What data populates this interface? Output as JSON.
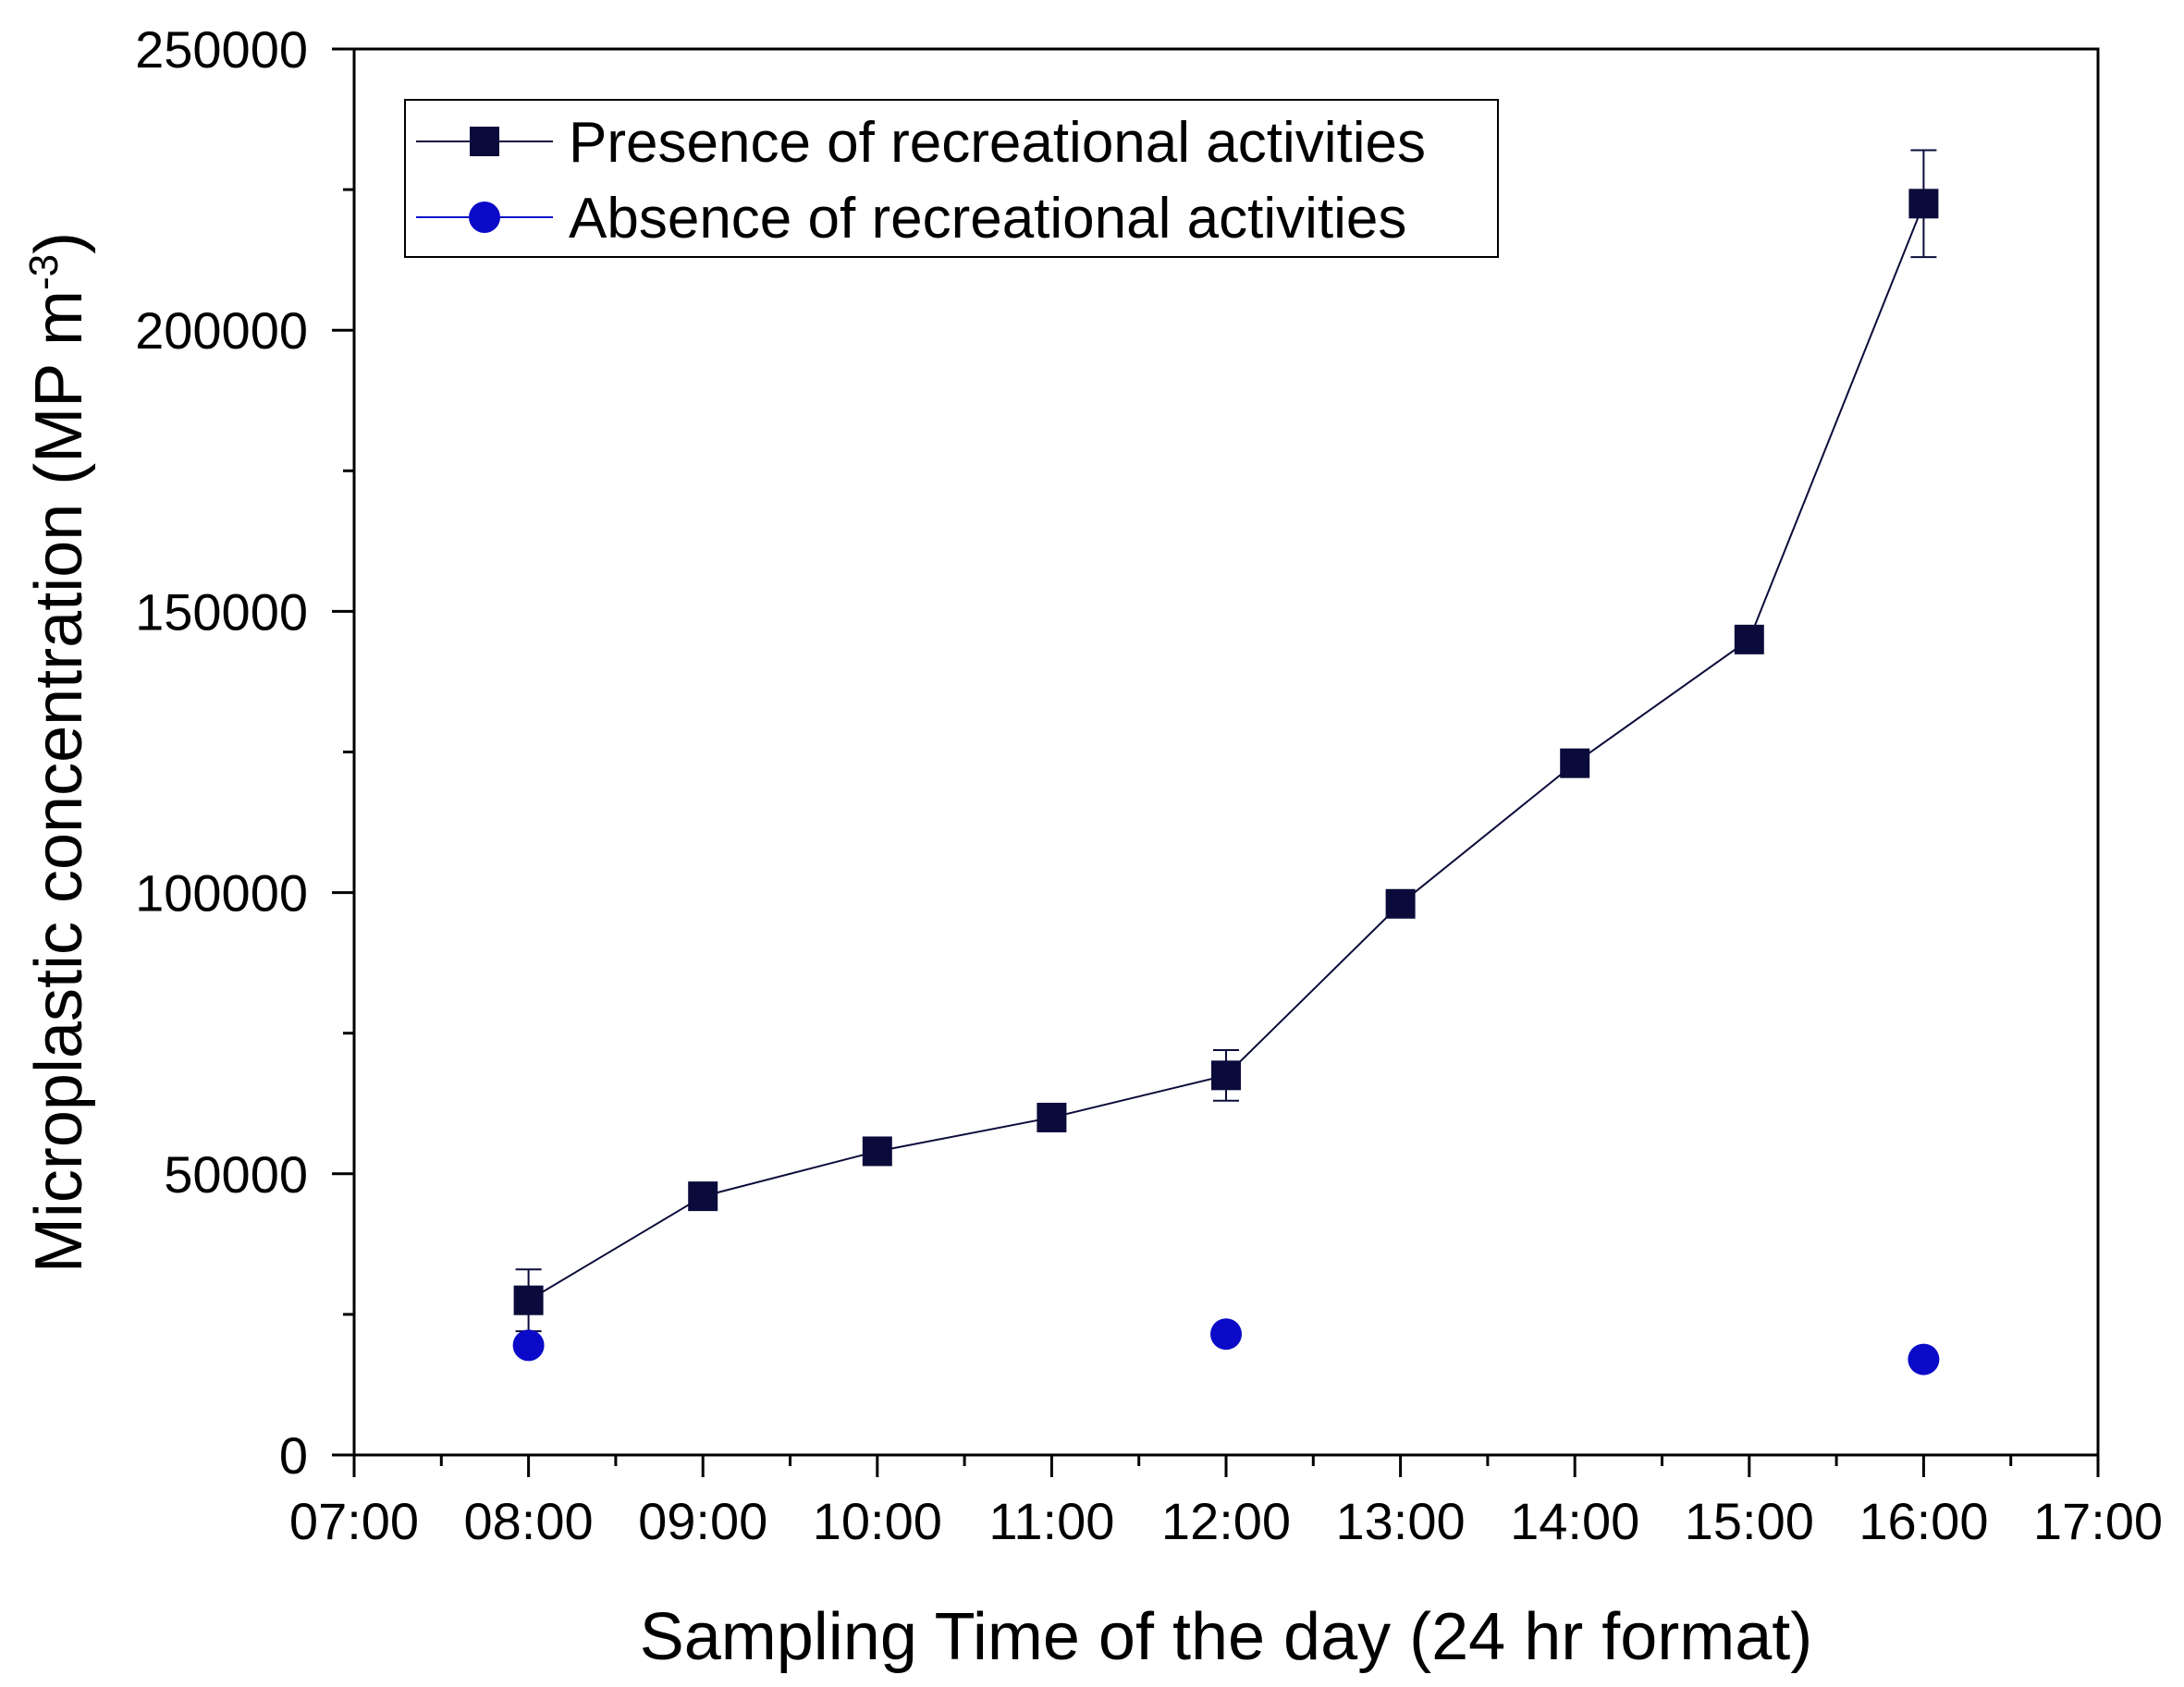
{
  "chart_data": {
    "type": "scatter",
    "xlabel": "Sampling Time of the day (24 hr format)",
    "ylabel_main": "Microplastic concentration (MP m",
    "ylabel_sup": "-3",
    "ylabel_close": ")",
    "x_ticks": [
      "07:00",
      "08:00",
      "09:00",
      "10:00",
      "11:00",
      "12:00",
      "13:00",
      "14:00",
      "15:00",
      "16:00",
      "17:00"
    ],
    "y_ticks": [
      "0",
      "50000",
      "100000",
      "150000",
      "200000",
      "250000"
    ],
    "xlim": [
      "07:00",
      "17:00"
    ],
    "ylim": [
      0,
      250000
    ],
    "grid": false,
    "legend_position": "top-left",
    "series": [
      {
        "name": "Presence of recreational activities",
        "marker": "square",
        "color": "#0b0b3b",
        "line": true,
        "x": [
          "08:00",
          "09:00",
          "10:00",
          "11:00",
          "12:00",
          "13:00",
          "14:00",
          "15:00",
          "16:00"
        ],
        "y": [
          27500,
          46000,
          54000,
          60000,
          67500,
          98000,
          123000,
          145000,
          222500
        ],
        "error": [
          5500,
          0,
          0,
          0,
          4500,
          0,
          0,
          0,
          9500
        ]
      },
      {
        "name": "Absence of recreational activities",
        "marker": "circle",
        "color": "#0a0ac8",
        "line": false,
        "x": [
          "08:00",
          "12:00",
          "16:00"
        ],
        "y": [
          19500,
          21500,
          17000
        ]
      }
    ]
  }
}
